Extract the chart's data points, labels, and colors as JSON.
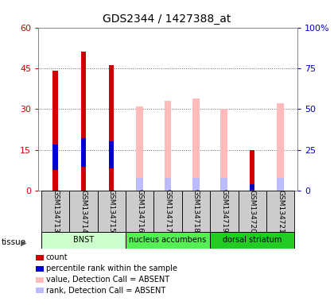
{
  "title": "GDS2344 / 1427388_at",
  "samples": [
    "GSM134713",
    "GSM134714",
    "GSM134715",
    "GSM134716",
    "GSM134717",
    "GSM134718",
    "GSM134719",
    "GSM134720",
    "GSM134721"
  ],
  "count_values": [
    44,
    51,
    46,
    0,
    0,
    0,
    0,
    15,
    0
  ],
  "rank_values": [
    14,
    16,
    15,
    0,
    0,
    0,
    0,
    2,
    0
  ],
  "absent_value_values": [
    0,
    0,
    0,
    31,
    33,
    34,
    30,
    0,
    32
  ],
  "absent_rank_values": [
    0,
    0,
    0,
    8,
    8,
    8,
    8,
    0,
    8
  ],
  "tissues": [
    {
      "label": "BNST",
      "start": 0,
      "end": 3,
      "color": "#ccffcc"
    },
    {
      "label": "nucleus accumbens",
      "start": 3,
      "end": 6,
      "color": "#66ee66"
    },
    {
      "label": "dorsal striatum",
      "start": 6,
      "end": 9,
      "color": "#33dd33"
    }
  ],
  "ylim_left": [
    0,
    60
  ],
  "ylim_right": [
    0,
    100
  ],
  "yticks_left": [
    0,
    15,
    30,
    45,
    60
  ],
  "ytick_labels_left": [
    "0",
    "15",
    "30",
    "45",
    "60"
  ],
  "yticks_right": [
    0,
    25,
    50,
    75,
    100
  ],
  "ytick_labels_right": [
    "0",
    "25",
    "50",
    "75",
    "100%"
  ],
  "color_count": "#cc0000",
  "color_rank": "#0000cc",
  "color_absent_value": "#ffbbbb",
  "color_absent_rank": "#bbbbff",
  "bg_color": "#ffffff",
  "grid_color": "#666666",
  "sample_bg": "#cccccc"
}
